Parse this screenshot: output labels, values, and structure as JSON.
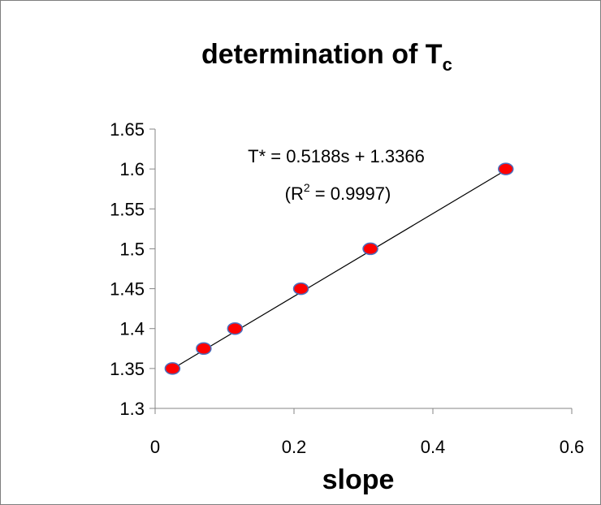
{
  "chart_data": {
    "type": "scatter",
    "title": "determination of T",
    "title_subscript": "c",
    "xlabel": "slope",
    "ylabel": "",
    "xlim": [
      0,
      0.6
    ],
    "ylim": [
      1.3,
      1.65
    ],
    "x_ticks": [
      "0",
      "0.2",
      "0.4",
      "0.6"
    ],
    "y_ticks": [
      "1.3",
      "1.35",
      "1.4",
      "1.45",
      "1.5",
      "1.55",
      "1.6",
      "1.65"
    ],
    "grid": false,
    "series": [
      {
        "points": [
          {
            "x": 0.025,
            "y": 1.35
          },
          {
            "x": 0.07,
            "y": 1.375
          },
          {
            "x": 0.115,
            "y": 1.4
          },
          {
            "x": 0.21,
            "y": 1.45
          },
          {
            "x": 0.31,
            "y": 1.5
          },
          {
            "x": 0.505,
            "y": 1.6
          }
        ],
        "marker_color": "#ff0000",
        "marker_edge_color": "#4a6fbf"
      }
    ],
    "trendline": {
      "slope": 0.5188,
      "intercept": 1.3366,
      "x_range": [
        0.025,
        0.505
      ],
      "color": "#000000"
    },
    "annotation": {
      "equation": "T* = 0.5188s + 1.3366",
      "r2_prefix": "(R",
      "r2_sup": "2",
      "r2_suffix": " = 0.9997)"
    }
  }
}
